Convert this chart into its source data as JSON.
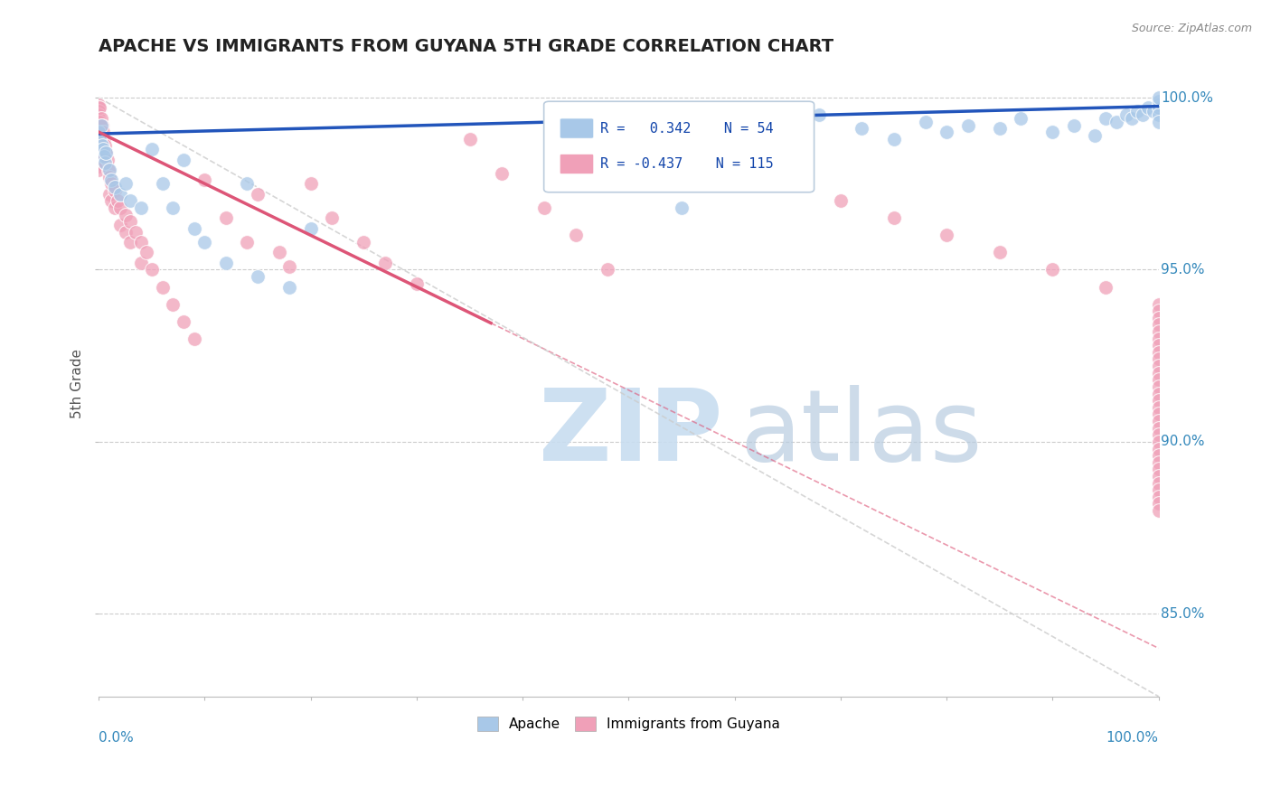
{
  "title": "APACHE VS IMMIGRANTS FROM GUYANA 5TH GRADE CORRELATION CHART",
  "source": "Source: ZipAtlas.com",
  "ylabel": "5th Grade",
  "y_ticks": [
    0.85,
    0.9,
    0.95,
    1.0
  ],
  "y_tick_labels": [
    "85.0%",
    "90.0%",
    "95.0%",
    "100.0%"
  ],
  "x_min": 0.0,
  "x_max": 1.0,
  "y_min": 0.826,
  "y_max": 1.008,
  "apache_color": "#a8c8e8",
  "guyana_color": "#f0a0b8",
  "trend_apache_color": "#2255bb",
  "trend_guyana_color": "#dd5577",
  "watermark_zip_color": "#c8ddf0",
  "watermark_atlas_color": "#b8cce0",
  "grid_color": "#cccccc",
  "axis_color": "#bbbbbb",
  "title_color": "#222222",
  "right_label_color": "#3388bb",
  "legend_box_color": "#ddddee",
  "legend_text_color": "#1144aa",
  "apache_scatter_x": [
    0.0,
    0.001,
    0.002,
    0.003,
    0.004,
    0.005,
    0.006,
    0.007,
    0.01,
    0.012,
    0.015,
    0.02,
    0.025,
    0.03,
    0.04,
    0.05,
    0.06,
    0.07,
    0.08,
    0.09,
    0.1,
    0.12,
    0.14,
    0.15,
    0.18,
    0.2,
    0.55,
    0.6,
    0.65,
    0.68,
    0.72,
    0.75,
    0.78,
    0.8,
    0.82,
    0.85,
    0.87,
    0.9,
    0.92,
    0.94,
    0.95,
    0.96,
    0.97,
    0.975,
    0.98,
    0.985,
    0.99,
    0.995,
    1.0,
    1.0,
    1.0,
    1.0,
    1.0,
    1.0
  ],
  "apache_scatter_y": [
    0.99,
    0.988,
    0.992,
    0.986,
    0.985,
    0.983,
    0.981,
    0.984,
    0.979,
    0.976,
    0.974,
    0.972,
    0.975,
    0.97,
    0.968,
    0.985,
    0.975,
    0.968,
    0.982,
    0.962,
    0.958,
    0.952,
    0.975,
    0.948,
    0.945,
    0.962,
    0.968,
    0.994,
    0.992,
    0.995,
    0.991,
    0.988,
    0.993,
    0.99,
    0.992,
    0.991,
    0.994,
    0.99,
    0.992,
    0.989,
    0.994,
    0.993,
    0.995,
    0.994,
    0.996,
    0.995,
    0.997,
    0.996,
    0.998,
    0.997,
    0.995,
    0.993,
    0.999,
    1.0
  ],
  "guyana_scatter_x": [
    0.0,
    0.0,
    0.0,
    0.0,
    0.0,
    0.0,
    0.0,
    0.0,
    0.0,
    0.0,
    0.0,
    0.0,
    0.0,
    0.0,
    0.0,
    0.0,
    0.0,
    0.0,
    0.0,
    0.0,
    0.001,
    0.001,
    0.001,
    0.002,
    0.002,
    0.002,
    0.003,
    0.003,
    0.004,
    0.004,
    0.005,
    0.005,
    0.006,
    0.006,
    0.007,
    0.008,
    0.009,
    0.01,
    0.01,
    0.012,
    0.012,
    0.015,
    0.015,
    0.018,
    0.02,
    0.02,
    0.025,
    0.025,
    0.03,
    0.03,
    0.035,
    0.04,
    0.04,
    0.045,
    0.05,
    0.06,
    0.07,
    0.08,
    0.09,
    0.1,
    0.12,
    0.14,
    0.15,
    0.17,
    0.18,
    0.2,
    0.22,
    0.25,
    0.27,
    0.3,
    0.35,
    0.38,
    0.42,
    0.45,
    0.48,
    0.5,
    0.55,
    0.6,
    0.65,
    0.7,
    0.75,
    0.8,
    0.85,
    0.9,
    0.95,
    1.0,
    1.0,
    1.0,
    1.0,
    1.0,
    1.0,
    1.0,
    1.0,
    1.0,
    1.0,
    1.0,
    1.0,
    1.0,
    1.0,
    1.0,
    1.0,
    1.0,
    1.0,
    1.0,
    1.0,
    1.0,
    1.0,
    1.0,
    1.0,
    1.0,
    1.0,
    1.0,
    1.0,
    1.0,
    1.0,
    1.0
  ],
  "guyana_scatter_y": [
    0.998,
    0.997,
    0.996,
    0.995,
    0.994,
    0.993,
    0.992,
    0.991,
    0.99,
    0.989,
    0.988,
    0.987,
    0.986,
    0.985,
    0.984,
    0.983,
    0.982,
    0.981,
    0.98,
    0.979,
    0.997,
    0.993,
    0.988,
    0.994,
    0.99,
    0.986,
    0.992,
    0.988,
    0.99,
    0.985,
    0.988,
    0.983,
    0.986,
    0.981,
    0.984,
    0.982,
    0.979,
    0.977,
    0.972,
    0.975,
    0.97,
    0.973,
    0.968,
    0.97,
    0.968,
    0.963,
    0.966,
    0.961,
    0.964,
    0.958,
    0.961,
    0.958,
    0.952,
    0.955,
    0.95,
    0.945,
    0.94,
    0.935,
    0.93,
    0.976,
    0.965,
    0.958,
    0.972,
    0.955,
    0.951,
    0.975,
    0.965,
    0.958,
    0.952,
    0.946,
    0.988,
    0.978,
    0.968,
    0.96,
    0.95,
    0.99,
    0.985,
    0.98,
    0.975,
    0.97,
    0.965,
    0.96,
    0.955,
    0.95,
    0.945,
    0.94,
    0.938,
    0.936,
    0.934,
    0.932,
    0.93,
    0.928,
    0.926,
    0.924,
    0.922,
    0.92,
    0.918,
    0.916,
    0.914,
    0.912,
    0.91,
    0.908,
    0.906,
    0.904,
    0.902,
    0.9,
    0.898,
    0.896,
    0.894,
    0.892,
    0.89,
    0.888,
    0.886,
    0.884,
    0.882,
    0.88
  ]
}
